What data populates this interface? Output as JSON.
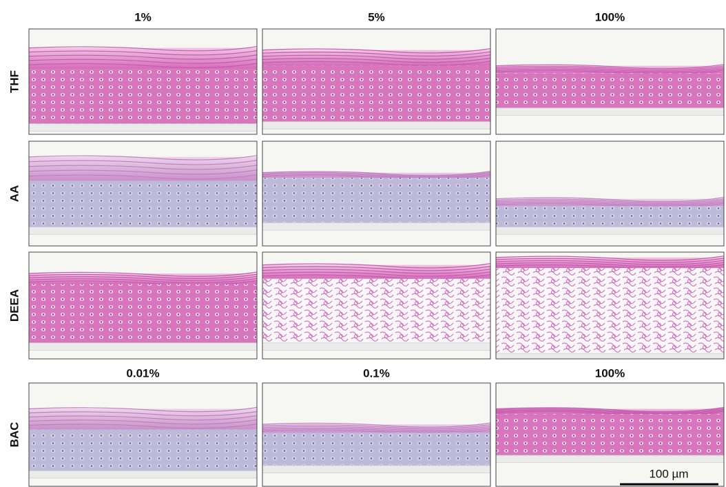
{
  "header_columns": [
    "1%",
    "5%",
    "100%"
  ],
  "rows": [
    {
      "label": "THF"
    },
    {
      "label": "AA"
    },
    {
      "label": "DEEA"
    },
    {
      "label": "BAC",
      "columns": [
        "0.01%",
        "0.1%",
        "100%"
      ]
    }
  ],
  "scale_bar": "100 µm"
}
